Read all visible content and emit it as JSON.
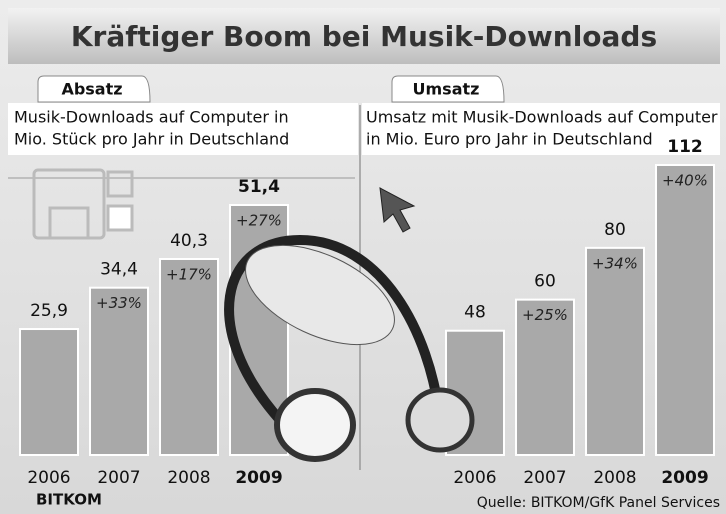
{
  "title": "Kräftiger Boom bei Musik-Downloads",
  "chart_data": [
    {
      "type": "bar",
      "tab": "Absatz",
      "subtitle": [
        "Musik-Downloads auf Computer in",
        "Mio. Stück pro Jahr in Deutschland"
      ],
      "categories": [
        "2006",
        "2007",
        "2008",
        "2009"
      ],
      "values": [
        25.9,
        34.4,
        40.3,
        51.4
      ],
      "value_labels": [
        "25,9",
        "34,4",
        "40,3",
        "51,4"
      ],
      "growth_labels": [
        null,
        "+33%",
        "+17%",
        "+27%"
      ],
      "color": "#a9a9a9"
    },
    {
      "type": "bar",
      "tab": "Umsatz",
      "subtitle": [
        "Umsatz mit Musik-Downloads auf Computer",
        "in Mio. Euro pro Jahr in Deutschland"
      ],
      "categories": [
        "2006",
        "2007",
        "2008",
        "2009"
      ],
      "values": [
        48,
        60,
        80,
        112
      ],
      "value_labels": [
        "48",
        "60",
        "80",
        "112"
      ],
      "growth_labels": [
        null,
        "+25%",
        "+34%",
        "+40%"
      ],
      "color": "#a9a9a9"
    }
  ],
  "footer": {
    "logo": "BITKOM",
    "source": "Quelle: BITKOM/GfK Panel Services"
  }
}
